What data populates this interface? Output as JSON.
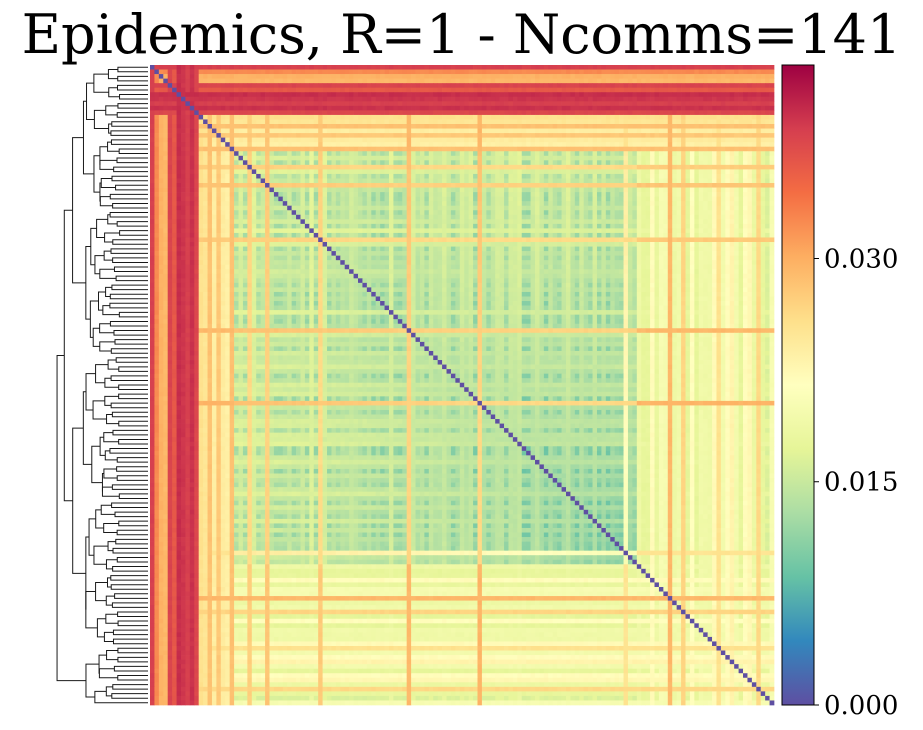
{
  "chart_data": {
    "type": "heatmap",
    "title": "Epidemics, R=1 - Ncomms=141",
    "n": 141,
    "colormap": "Spectral_r",
    "vmin": 0.0,
    "vmax": 0.043,
    "colorbar_ticks": [
      {
        "value": 0.0,
        "label": "0.000"
      },
      {
        "value": 0.015,
        "label": "0.015"
      },
      {
        "value": 0.03,
        "label": "0.030"
      }
    ],
    "dendrogram": "left",
    "diagonal_value": 0.0,
    "grid": false
  }
}
